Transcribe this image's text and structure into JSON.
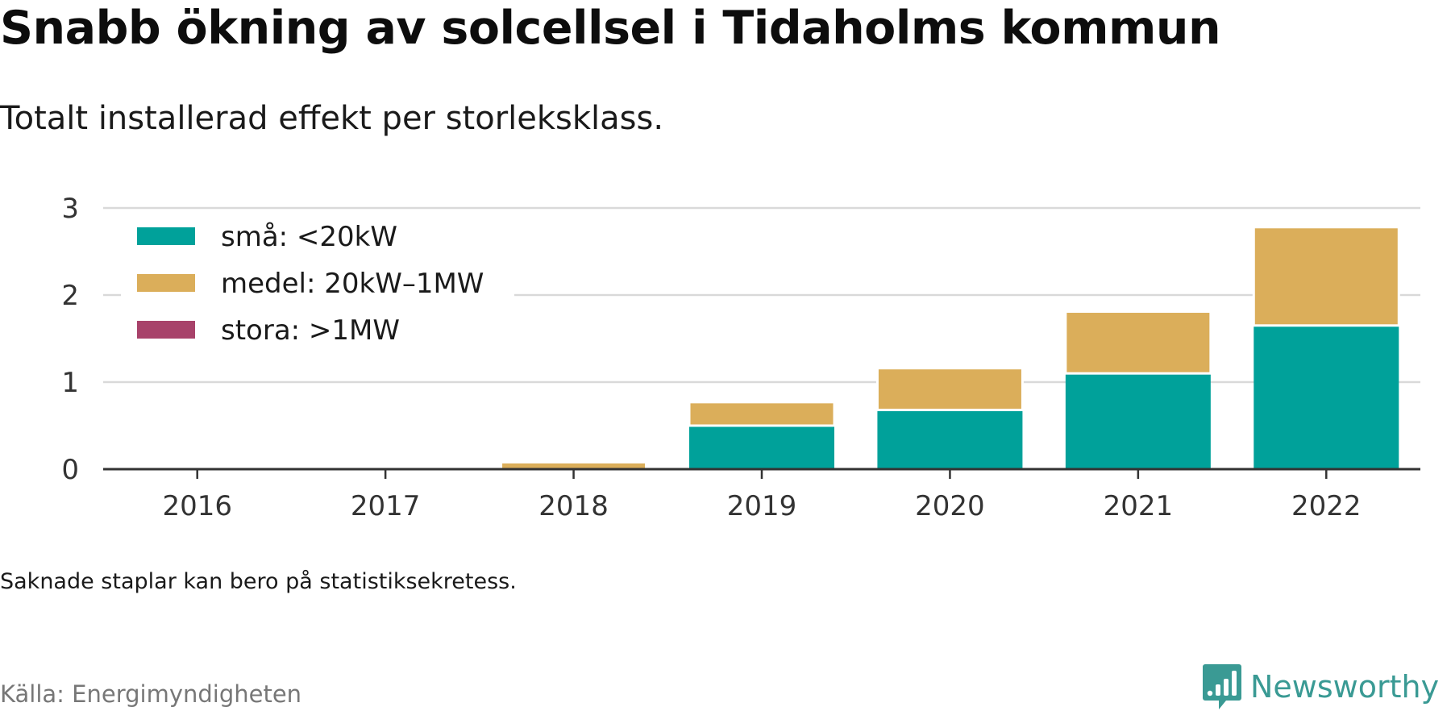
{
  "title": "Snabb ökning av solcellsel i Tidaholms kommun",
  "subtitle": "Totalt installerad effekt per storleksklass.",
  "note": "Saknade staplar kan bero på statistiksekretess.",
  "source": "Källa: Energimyndigheten",
  "brand": {
    "name": "Newsworthy",
    "icon": "newsworthy-logo-icon",
    "color": "#3a9a94"
  },
  "chart_data": {
    "type": "bar",
    "stacked": true,
    "categories": [
      "2016",
      "2017",
      "2018",
      "2019",
      "2020",
      "2021",
      "2022"
    ],
    "series": [
      {
        "name": "små: <20kW",
        "color": "#00a19a",
        "values": [
          0.0,
          0.0,
          0.0,
          0.5,
          0.68,
          1.1,
          1.65
        ]
      },
      {
        "name": "medel: 20kW–1MW",
        "color": "#dbae5a",
        "values": [
          0.02,
          0.0,
          0.08,
          0.27,
          0.48,
          0.71,
          1.13
        ]
      },
      {
        "name": "stora: >1MW",
        "color": "#a8426a",
        "values": [
          0,
          0,
          0,
          0,
          0,
          0,
          0
        ]
      }
    ],
    "y_ticks": [
      0,
      1,
      2,
      3
    ],
    "ylim": [
      0,
      3
    ],
    "grid": true,
    "legend_position": "top-left"
  }
}
